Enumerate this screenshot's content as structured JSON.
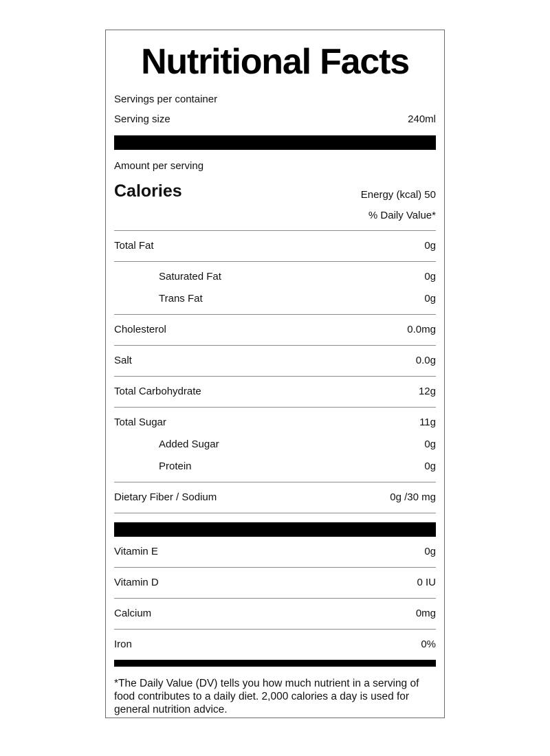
{
  "title": "Nutritional Facts",
  "servings_per_container": "Servings per container",
  "serving_size": {
    "label": "Serving size",
    "value": "240ml"
  },
  "amount_per_serving": "Amount per serving",
  "calories": {
    "label": "Calories",
    "energy": "Energy (kcal) 50"
  },
  "daily_value_header": "% Daily Value*",
  "nutrients": [
    {
      "label": "Total Fat",
      "value": "0g"
    },
    {
      "label": "Saturated Fat",
      "value": "0g"
    },
    {
      "label": "Trans Fat",
      "value": "0g"
    },
    {
      "label": "Cholesterol",
      "value": "0.0mg"
    },
    {
      "label": "Salt",
      "value": "0.0g"
    },
    {
      "label": "Total Carbohydrate",
      "value": "12g"
    },
    {
      "label": "Total Sugar",
      "value": "11g"
    },
    {
      "label": "Added Sugar",
      "value": "0g"
    },
    {
      "label": "Protein",
      "value": "0g"
    },
    {
      "label": "Dietary Fiber / Sodium",
      "value": "0g /30 mg"
    }
  ],
  "vitamins": [
    {
      "label": "Vitamin E",
      "value": "0g"
    },
    {
      "label": "Vitamin D",
      "value": "0 IU"
    },
    {
      "label": "Calcium",
      "value": "0mg"
    },
    {
      "label": "Iron",
      "value": "0%"
    }
  ],
  "footnote": "*The Daily Value (DV) tells you how much nutrient in a serving of food contributes to a daily diet. 2,000 calories a day is used for general nutrition advice."
}
